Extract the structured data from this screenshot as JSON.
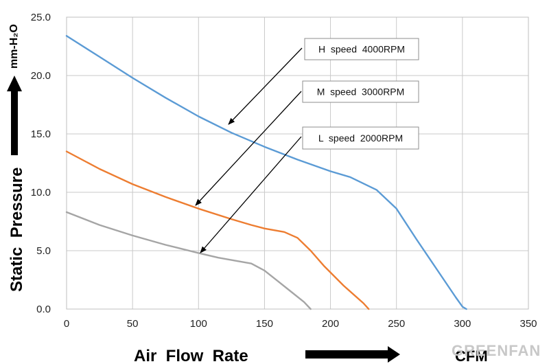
{
  "chart_data": {
    "type": "line",
    "xlabel": "Air  Flow  Rate",
    "x_unit": "CFM",
    "ylabel": "Static  Pressure",
    "y_unit": "mm-H₂O",
    "xlim": [
      0,
      350
    ],
    "ylim": [
      0,
      25
    ],
    "x_ticks": [
      "0",
      "50",
      "100",
      "150",
      "200",
      "250",
      "300",
      "350"
    ],
    "y_ticks": [
      "0.0",
      "5.0",
      "10.0",
      "15.0",
      "20.0",
      "25.0"
    ],
    "grid": true,
    "series": [
      {
        "name": "H  speed  4000RPM",
        "color": "#5b9bd5",
        "points": [
          [
            0,
            23.4
          ],
          [
            25,
            21.6
          ],
          [
            50,
            19.8
          ],
          [
            75,
            18.1
          ],
          [
            100,
            16.5
          ],
          [
            125,
            15.1
          ],
          [
            150,
            13.9
          ],
          [
            175,
            12.8
          ],
          [
            200,
            11.8
          ],
          [
            215,
            11.3
          ],
          [
            235,
            10.2
          ],
          [
            250,
            8.6
          ],
          [
            265,
            6.0
          ],
          [
            280,
            3.5
          ],
          [
            295,
            1.0
          ],
          [
            300,
            0.2
          ],
          [
            303,
            0
          ]
        ]
      },
      {
        "name": "M  speed  3000RPM",
        "color": "#ed7d31",
        "points": [
          [
            0,
            13.5
          ],
          [
            25,
            12.0
          ],
          [
            50,
            10.7
          ],
          [
            75,
            9.6
          ],
          [
            100,
            8.6
          ],
          [
            125,
            7.7
          ],
          [
            140,
            7.2
          ],
          [
            150,
            6.9
          ],
          [
            165,
            6.6
          ],
          [
            175,
            6.1
          ],
          [
            185,
            5.0
          ],
          [
            195,
            3.7
          ],
          [
            210,
            2.0
          ],
          [
            225,
            0.5
          ],
          [
            229,
            0
          ]
        ]
      },
      {
        "name": "L  speed  2000RPM",
        "color": "#a5a5a5",
        "points": [
          [
            0,
            8.3
          ],
          [
            25,
            7.2
          ],
          [
            50,
            6.3
          ],
          [
            75,
            5.5
          ],
          [
            100,
            4.8
          ],
          [
            115,
            4.4
          ],
          [
            130,
            4.1
          ],
          [
            140,
            3.9
          ],
          [
            150,
            3.3
          ],
          [
            160,
            2.4
          ],
          [
            170,
            1.5
          ],
          [
            180,
            0.6
          ],
          [
            185,
            0
          ]
        ]
      }
    ],
    "annotations": [
      {
        "label": "H  speed  4000RPM",
        "series": 0,
        "box_x": 444,
        "box_y": 56,
        "box_w": 166,
        "box_h": 31,
        "from": [
          440,
          70
        ],
        "to": [
          333,
          181
        ]
      },
      {
        "label": "M  speed  3000RPM",
        "series": 1,
        "box_x": 441,
        "box_y": 118,
        "box_w": 169,
        "box_h": 31,
        "from": [
          439,
          133
        ],
        "to": [
          285,
          299
        ]
      },
      {
        "label": "L  speed  2000RPM",
        "series": 2,
        "box_x": 441,
        "box_y": 185,
        "box_w": 169,
        "box_h": 32,
        "from": [
          439,
          199
        ],
        "to": [
          292,
          368
        ]
      }
    ]
  },
  "brand": "GREENFAN"
}
